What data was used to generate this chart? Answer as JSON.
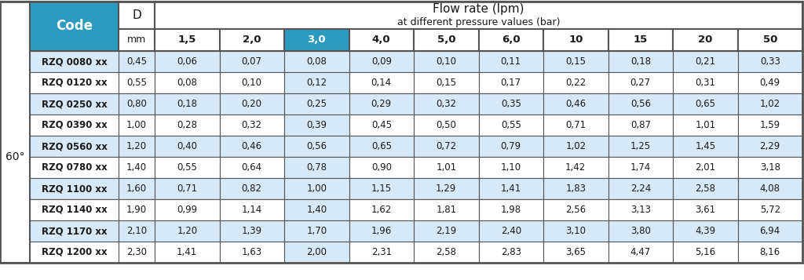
{
  "title_line1": "Flow rate (lpm)",
  "title_line2": "at different pressure values (bar)",
  "angle_label": "60°",
  "col_header_D": "D",
  "col_header_mm": "mm",
  "pressure_cols": [
    "1,5",
    "2,0",
    "3,0",
    "4,0",
    "5,0",
    "6,0",
    "10",
    "15",
    "20",
    "50"
  ],
  "highlighted_col": 2,
  "codes": [
    "RZQ 0080 xx",
    "RZQ 0120 xx",
    "RZQ 0250 xx",
    "RZQ 0390 xx",
    "RZQ 0560 xx",
    "RZQ 0780 xx",
    "RZQ 1100 xx",
    "RZQ 1140 xx",
    "RZQ 1170 xx",
    "RZQ 1200 xx"
  ],
  "d_values": [
    "0,45",
    "0,55",
    "0,80",
    "1,00",
    "1,20",
    "1,40",
    "1,60",
    "1,90",
    "2,10",
    "2,30"
  ],
  "flow_data": [
    [
      "0,06",
      "0,07",
      "0,08",
      "0,09",
      "0,10",
      "0,11",
      "0,15",
      "0,18",
      "0,21",
      "0,33"
    ],
    [
      "0,08",
      "0,10",
      "0,12",
      "0,14",
      "0,15",
      "0,17",
      "0,22",
      "0,27",
      "0,31",
      "0,49"
    ],
    [
      "0,18",
      "0,20",
      "0,25",
      "0,29",
      "0,32",
      "0,35",
      "0,46",
      "0,56",
      "0,65",
      "1,02"
    ],
    [
      "0,28",
      "0,32",
      "0,39",
      "0,45",
      "0,50",
      "0,55",
      "0,71",
      "0,87",
      "1,01",
      "1,59"
    ],
    [
      "0,40",
      "0,46",
      "0,56",
      "0,65",
      "0,72",
      "0,79",
      "1,02",
      "1,25",
      "1,45",
      "2,29"
    ],
    [
      "0,55",
      "0,64",
      "0,78",
      "0,90",
      "1,01",
      "1,10",
      "1,42",
      "1,74",
      "2,01",
      "3,18"
    ],
    [
      "0,71",
      "0,82",
      "1,00",
      "1,15",
      "1,29",
      "1,41",
      "1,83",
      "2,24",
      "2,58",
      "4,08"
    ],
    [
      "0,99",
      "1,14",
      "1,40",
      "1,62",
      "1,81",
      "1,98",
      "2,56",
      "3,13",
      "3,61",
      "5,72"
    ],
    [
      "1,20",
      "1,39",
      "1,70",
      "1,96",
      "2,19",
      "2,40",
      "3,10",
      "3,80",
      "4,39",
      "6,94"
    ],
    [
      "1,41",
      "1,63",
      "2,00",
      "2,31",
      "2,58",
      "2,83",
      "3,65",
      "4,47",
      "5,16",
      "8,16"
    ]
  ],
  "color_teal": "#2B9BBF",
  "color_light_blue": "#D6E9F8",
  "color_white": "#FFFFFF",
  "color_border": "#555555",
  "color_text_white": "#FFFFFF",
  "color_text_dark": "#1a1a1a",
  "fig_w": 10.24,
  "fig_h": 3.57,
  "dpi": 100
}
